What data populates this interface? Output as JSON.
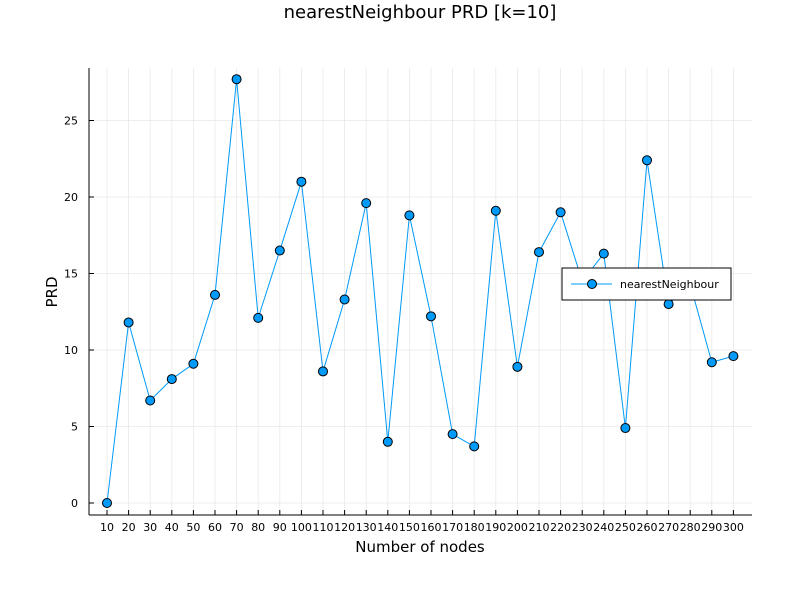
{
  "chart_data": {
    "type": "line",
    "title": "nearestNeighbour PRD [k=10]",
    "xlabel": "Number of nodes",
    "ylabel": "PRD",
    "categories": [
      10,
      20,
      30,
      40,
      50,
      60,
      70,
      80,
      90,
      100,
      110,
      120,
      130,
      140,
      150,
      160,
      170,
      180,
      190,
      200,
      210,
      220,
      230,
      240,
      250,
      260,
      270,
      280,
      290,
      300
    ],
    "y_ticks": [
      0,
      5,
      10,
      15,
      20,
      25
    ],
    "ylim": [
      -0.8,
      28.3
    ],
    "grid": true,
    "legend_position": "right",
    "series": [
      {
        "name": "nearestNeighbour",
        "color": "#009af9",
        "marker": "circle",
        "values": [
          0.0,
          11.8,
          6.7,
          8.1,
          9.1,
          13.6,
          27.7,
          12.1,
          16.5,
          21.0,
          8.6,
          13.3,
          19.6,
          4.0,
          18.8,
          12.2,
          4.5,
          3.7,
          19.1,
          8.9,
          16.4,
          19.0,
          14.5,
          16.3,
          4.9,
          22.4,
          13.0,
          14.3,
          9.2,
          9.6
        ]
      }
    ]
  }
}
